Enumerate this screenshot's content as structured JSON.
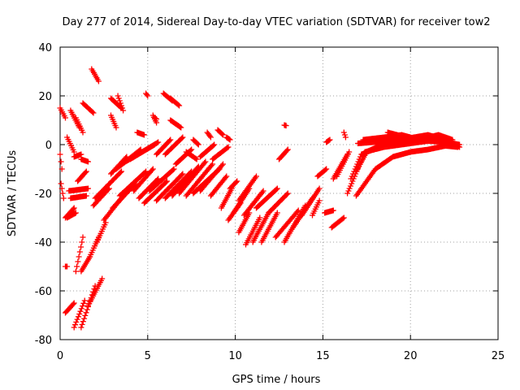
{
  "chart_data": {
    "type": "scatter",
    "title": "Day 277 of 2014, Sidereal Day-to-day VTEC variation (SDTVAR) for receiver tow2",
    "xlabel": "GPS time / hours",
    "ylabel": "SDTVAR / TECUs",
    "xlim": [
      0,
      25
    ],
    "ylim": [
      -80,
      40
    ],
    "xticks": [
      0,
      5,
      10,
      15,
      20,
      25
    ],
    "yticks": [
      -80,
      -60,
      -40,
      -20,
      0,
      20,
      40
    ],
    "xtick_labels": [
      "0",
      "5",
      "10",
      "15",
      "20",
      "25"
    ],
    "ytick_labels": [
      "-80",
      "-60",
      "-40",
      "-20",
      "0",
      "20",
      "40"
    ],
    "grid": true,
    "marker": "plus",
    "color": "#ff0000",
    "series": [
      {
        "name": "SDTVAR",
        "segments": [
          [
            [
              0.0,
              15.0
            ],
            [
              0.3,
              11.0
            ]
          ],
          [
            [
              0.0,
              -4.0
            ],
            [
              0.1,
              -10.0
            ]
          ],
          [
            [
              0.05,
              -16.0
            ],
            [
              0.2,
              -22.0
            ]
          ],
          [
            [
              0.4,
              3.0
            ],
            [
              0.8,
              -3.0
            ]
          ],
          [
            [
              0.6,
              14.0
            ],
            [
              1.1,
              7.0
            ]
          ],
          [
            [
              0.9,
              11.0
            ],
            [
              1.3,
              5.0
            ]
          ],
          [
            [
              1.3,
              17.0
            ],
            [
              1.9,
              13.0
            ]
          ],
          [
            [
              1.8,
              31.0
            ],
            [
              2.2,
              26.0
            ]
          ],
          [
            [
              2.9,
              19.0
            ],
            [
              3.5,
              15.0
            ]
          ],
          [
            [
              3.3,
              20.0
            ],
            [
              3.6,
              14.0
            ]
          ],
          [
            [
              2.9,
              12.0
            ],
            [
              3.2,
              7.0
            ]
          ],
          [
            [
              4.4,
              5.0
            ],
            [
              4.8,
              4.0
            ]
          ],
          [
            [
              4.9,
              21.0
            ],
            [
              5.0,
              20.0
            ]
          ],
          [
            [
              5.3,
              12.0
            ],
            [
              5.5,
              9.0
            ]
          ],
          [
            [
              5.9,
              21.0
            ],
            [
              6.4,
              18.0
            ]
          ],
          [
            [
              6.3,
              19.0
            ],
            [
              6.8,
              16.0
            ]
          ],
          [
            [
              6.3,
              10.0
            ],
            [
              6.9,
              7.0
            ]
          ],
          [
            [
              7.2,
              -3.0
            ],
            [
              7.8,
              -6.0
            ]
          ],
          [
            [
              7.6,
              2.0
            ],
            [
              7.9,
              0.0
            ]
          ],
          [
            [
              8.4,
              5.0
            ],
            [
              8.6,
              3.0
            ]
          ],
          [
            [
              9.0,
              6.0
            ],
            [
              9.3,
              4.0
            ]
          ],
          [
            [
              9.5,
              3.0
            ],
            [
              9.7,
              2.0
            ]
          ],
          [
            [
              12.8,
              8.0
            ],
            [
              12.9,
              7.8
            ]
          ],
          [
            [
              5.4,
              11.0
            ],
            [
              5.5,
              10.5
            ]
          ],
          [
            [
              0.3,
              -30.0
            ],
            [
              0.8,
              -26.0
            ]
          ],
          [
            [
              0.4,
              -30.0
            ],
            [
              0.9,
              -28.0
            ]
          ],
          [
            [
              0.5,
              -19.0
            ],
            [
              1.6,
              -18.0
            ]
          ],
          [
            [
              0.6,
              -22.0
            ],
            [
              1.5,
              -21.0
            ]
          ],
          [
            [
              0.8,
              -5.0
            ],
            [
              1.2,
              -4.0
            ]
          ],
          [
            [
              1.0,
              -15.0
            ],
            [
              1.5,
              -11.0
            ]
          ],
          [
            [
              1.2,
              -6.0
            ],
            [
              1.6,
              -7.0
            ]
          ],
          [
            [
              0.3,
              -50.0
            ],
            [
              0.4,
              -50.0
            ]
          ],
          [
            [
              0.3,
              -69.0
            ],
            [
              0.8,
              -65.0
            ]
          ],
          [
            [
              0.8,
              -75.0
            ],
            [
              1.4,
              -64.0
            ]
          ],
          [
            [
              1.2,
              -75.0
            ],
            [
              2.0,
              -58.0
            ]
          ],
          [
            [
              1.6,
              -66.0
            ],
            [
              2.4,
              -55.0
            ]
          ],
          [
            [
              0.9,
              -52.0
            ],
            [
              1.3,
              -38.0
            ]
          ],
          [
            [
              1.2,
              -52.0
            ],
            [
              1.7,
              -46.0
            ]
          ],
          [
            [
              1.7,
              -46.0
            ],
            [
              2.2,
              -38.0
            ]
          ],
          [
            [
              2.1,
              -40.0
            ],
            [
              2.6,
              -32.0
            ]
          ],
          [
            [
              1.9,
              -25.0
            ],
            [
              2.8,
              -18.0
            ]
          ],
          [
            [
              2.0,
              -22.0
            ],
            [
              3.5,
              -11.0
            ]
          ],
          [
            [
              2.9,
              -12.0
            ],
            [
              3.8,
              -5.0
            ]
          ],
          [
            [
              3.2,
              -10.0
            ],
            [
              4.6,
              -2.0
            ]
          ],
          [
            [
              3.5,
              -8.0
            ],
            [
              5.4,
              0.0
            ]
          ],
          [
            [
              4.0,
              -6.0
            ],
            [
              5.6,
              1.0
            ]
          ],
          [
            [
              2.5,
              -31.0
            ],
            [
              3.6,
              -21.0
            ]
          ],
          [
            [
              3.0,
              -26.0
            ],
            [
              4.3,
              -16.0
            ]
          ],
          [
            [
              3.4,
              -21.0
            ],
            [
              4.9,
              -11.0
            ]
          ],
          [
            [
              4.2,
              -19.0
            ],
            [
              5.3,
              -10.0
            ]
          ],
          [
            [
              4.5,
              -22.0
            ],
            [
              5.6,
              -14.0
            ]
          ],
          [
            [
              4.8,
              -24.0
            ],
            [
              6.1,
              -15.0
            ]
          ],
          [
            [
              5.1,
              -19.0
            ],
            [
              6.5,
              -10.0
            ]
          ],
          [
            [
              5.5,
              -23.0
            ],
            [
              7.0,
              -12.0
            ]
          ],
          [
            [
              6.0,
              -22.0
            ],
            [
              7.5,
              -11.0
            ]
          ],
          [
            [
              6.4,
              -21.0
            ],
            [
              7.9,
              -9.0
            ]
          ],
          [
            [
              6.8,
              -20.0
            ],
            [
              8.3,
              -7.0
            ]
          ],
          [
            [
              7.2,
              -21.0
            ],
            [
              8.7,
              -8.0
            ]
          ],
          [
            [
              7.6,
              -20.0
            ],
            [
              9.1,
              -10.0
            ]
          ],
          [
            [
              8.0,
              -19.0
            ],
            [
              9.3,
              -8.0
            ]
          ],
          [
            [
              8.6,
              -21.0
            ],
            [
              9.5,
              -13.0
            ]
          ],
          [
            [
              5.5,
              -4.0
            ],
            [
              6.3,
              2.0
            ]
          ],
          [
            [
              6.0,
              -4.0
            ],
            [
              7.0,
              3.0
            ]
          ],
          [
            [
              6.6,
              -8.0
            ],
            [
              7.5,
              -2.0
            ]
          ],
          [
            [
              8.0,
              -5.0
            ],
            [
              8.8,
              0.0
            ]
          ],
          [
            [
              8.7,
              -6.0
            ],
            [
              9.6,
              -1.0
            ]
          ],
          [
            [
              9.2,
              -26.0
            ],
            [
              9.8,
              -18.0
            ]
          ],
          [
            [
              9.6,
              -31.0
            ],
            [
              10.3,
              -24.0
            ]
          ],
          [
            [
              9.9,
              -28.0
            ],
            [
              10.8,
              -18.0
            ]
          ],
          [
            [
              10.2,
              -23.0
            ],
            [
              11.2,
              -13.0
            ]
          ],
          [
            [
              10.5,
              -29.0
            ],
            [
              11.6,
              -19.0
            ]
          ],
          [
            [
              9.7,
              -18.0
            ],
            [
              10.1,
              -15.0
            ]
          ],
          [
            [
              10.2,
              -36.0
            ],
            [
              10.8,
              -28.0
            ]
          ],
          [
            [
              10.6,
              -41.0
            ],
            [
              11.4,
              -30.0
            ]
          ],
          [
            [
              11.0,
              -40.0
            ],
            [
              11.9,
              -28.0
            ]
          ],
          [
            [
              11.5,
              -40.0
            ],
            [
              12.4,
              -28.0
            ]
          ],
          [
            [
              11.2,
              -26.0
            ],
            [
              12.4,
              -18.0
            ]
          ],
          [
            [
              11.9,
              -28.0
            ],
            [
              13.0,
              -20.0
            ]
          ],
          [
            [
              12.3,
              -38.0
            ],
            [
              13.6,
              -27.0
            ]
          ],
          [
            [
              12.8,
              -40.0
            ],
            [
              14.0,
              -25.0
            ]
          ],
          [
            [
              13.3,
              -34.0
            ],
            [
              14.4,
              -22.0
            ]
          ],
          [
            [
              13.8,
              -29.0
            ],
            [
              14.8,
              -18.0
            ]
          ],
          [
            [
              12.5,
              -6.0
            ],
            [
              13.0,
              -2.0
            ]
          ],
          [
            [
              14.4,
              -29.0
            ],
            [
              14.8,
              -23.0
            ]
          ],
          [
            [
              14.7,
              -13.0
            ],
            [
              15.2,
              -10.0
            ]
          ],
          [
            [
              15.1,
              -28.0
            ],
            [
              15.6,
              -27.0
            ]
          ],
          [
            [
              15.5,
              -34.0
            ],
            [
              16.2,
              -30.0
            ]
          ],
          [
            [
              15.6,
              -14.0
            ],
            [
              16.4,
              -4.0
            ]
          ],
          [
            [
              15.8,
              -13.0
            ],
            [
              16.5,
              -3.0
            ]
          ],
          [
            [
              15.2,
              1.0
            ],
            [
              15.4,
              2.0
            ]
          ],
          [
            [
              16.2,
              5.0
            ],
            [
              16.3,
              3.0
            ]
          ],
          [
            [
              16.4,
              -20.0
            ],
            [
              17.4,
              -3.0
            ],
            [
              18.5,
              -1.0
            ],
            [
              20.0,
              0.5
            ],
            [
              21.0,
              1.5
            ],
            [
              22.0,
              1.0
            ],
            [
              22.8,
              0.0
            ]
          ],
          [
            [
              16.6,
              -14.0
            ],
            [
              17.2,
              -4.0
            ],
            [
              18.2,
              -1.0
            ],
            [
              19.5,
              1.0
            ],
            [
              21.0,
              2.5
            ],
            [
              22.0,
              1.5
            ],
            [
              22.7,
              0.0
            ]
          ],
          [
            [
              16.9,
              -11.0
            ],
            [
              17.5,
              -3.0
            ],
            [
              18.5,
              0.5
            ],
            [
              19.8,
              2.5
            ],
            [
              21.0,
              4.0
            ],
            [
              22.0,
              2.0
            ]
          ],
          [
            [
              17.0,
              0.5
            ],
            [
              18.8,
              1.5
            ],
            [
              20.5,
              3.0
            ],
            [
              21.8,
              2.0
            ],
            [
              22.6,
              -0.5
            ]
          ],
          [
            [
              17.3,
              2.0
            ],
            [
              18.5,
              3.0
            ],
            [
              19.5,
              4.0
            ],
            [
              20.5,
              2.0
            ],
            [
              21.6,
              4.0
            ],
            [
              22.4,
              2.0
            ]
          ],
          [
            [
              18.7,
              5.0
            ],
            [
              19.5,
              3.5
            ],
            [
              20.5,
              2.0
            ],
            [
              21.6,
              3.0
            ],
            [
              22.8,
              -1.0
            ]
          ],
          [
            [
              16.9,
              -21.0
            ],
            [
              18.0,
              -10.0
            ],
            [
              19.0,
              -5.0
            ],
            [
              20.0,
              -3.0
            ],
            [
              21.0,
              -2.0
            ],
            [
              22.0,
              -0.5
            ],
            [
              22.7,
              -1.0
            ]
          ]
        ]
      }
    ]
  }
}
